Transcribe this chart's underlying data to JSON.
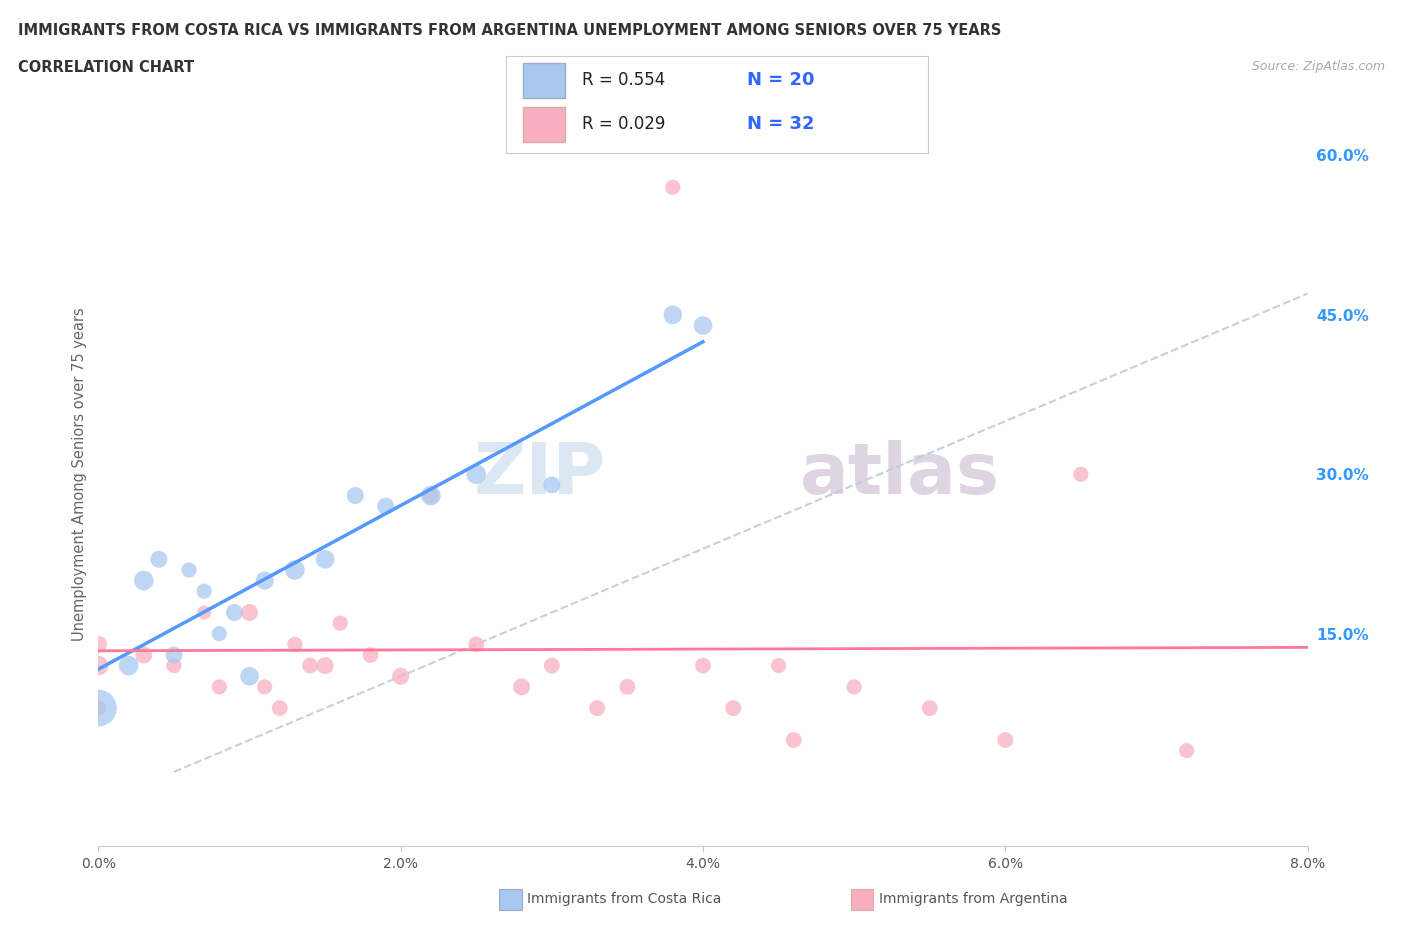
{
  "title_line1": "IMMIGRANTS FROM COSTA RICA VS IMMIGRANTS FROM ARGENTINA UNEMPLOYMENT AMONG SENIORS OVER 75 YEARS",
  "title_line2": "CORRELATION CHART",
  "source_text": "Source: ZipAtlas.com",
  "ylabel": "Unemployment Among Seniors over 75 years",
  "legend_bottom": [
    "Immigrants from Costa Rica",
    "Immigrants from Argentina"
  ],
  "xlim": [
    0.0,
    0.08
  ],
  "ylim": [
    -0.05,
    0.65
  ],
  "xticks": [
    0.0,
    0.02,
    0.04,
    0.06,
    0.08
  ],
  "xtick_labels": [
    "0.0%",
    "2.0%",
    "4.0%",
    "6.0%",
    "8.0%"
  ],
  "ytick_labels_right": [
    "15.0%",
    "30.0%",
    "45.0%",
    "60.0%"
  ],
  "yticks_right": [
    0.15,
    0.3,
    0.45,
    0.6
  ],
  "R_costa_rica": 0.554,
  "N_costa_rica": 20,
  "R_argentina": 0.029,
  "N_argentina": 32,
  "color_costa_rica": "#a8c8f0",
  "color_argentina": "#f8b0c0",
  "trendline_color_costa_rica": "#5599ff",
  "trendline_color_argentina": "#ff7799",
  "trendline_dashed_color": "#bbccdd",
  "watermark_zip": "ZIP",
  "watermark_atlas": "atlas",
  "background_color": "#ffffff",
  "grid_color": "#dddddd",
  "costa_rica_x": [
    0.0,
    0.002,
    0.003,
    0.004,
    0.005,
    0.006,
    0.007,
    0.008,
    0.009,
    0.01,
    0.011,
    0.013,
    0.015,
    0.017,
    0.019,
    0.022,
    0.025,
    0.03,
    0.038,
    0.04
  ],
  "costa_rica_y": [
    0.08,
    0.12,
    0.2,
    0.22,
    0.13,
    0.21,
    0.19,
    0.15,
    0.17,
    0.11,
    0.2,
    0.21,
    0.22,
    0.28,
    0.27,
    0.28,
    0.3,
    0.29,
    0.45,
    0.44
  ],
  "costa_rica_sizes": [
    700,
    200,
    200,
    150,
    150,
    120,
    120,
    120,
    150,
    180,
    170,
    200,
    180,
    150,
    150,
    200,
    200,
    150,
    180,
    180
  ],
  "argentina_x": [
    0.0,
    0.0,
    0.0,
    0.003,
    0.005,
    0.007,
    0.008,
    0.01,
    0.011,
    0.012,
    0.013,
    0.014,
    0.015,
    0.016,
    0.018,
    0.02,
    0.022,
    0.025,
    0.028,
    0.03,
    0.033,
    0.035,
    0.038,
    0.04,
    0.042,
    0.045,
    0.046,
    0.05,
    0.055,
    0.06,
    0.065,
    0.072
  ],
  "argentina_y": [
    0.12,
    0.14,
    0.08,
    0.13,
    0.12,
    0.17,
    0.1,
    0.17,
    0.1,
    0.08,
    0.14,
    0.12,
    0.12,
    0.16,
    0.13,
    0.11,
    0.28,
    0.14,
    0.1,
    0.12,
    0.08,
    0.1,
    0.57,
    0.12,
    0.08,
    0.12,
    0.05,
    0.1,
    0.08,
    0.05,
    0.3,
    0.04
  ],
  "argentina_sizes": [
    200,
    150,
    120,
    150,
    120,
    100,
    120,
    150,
    120,
    130,
    120,
    130,
    150,
    120,
    130,
    150,
    130,
    130,
    150,
    130,
    130,
    130,
    120,
    130,
    130,
    120,
    130,
    120,
    130,
    130,
    120,
    120
  ]
}
